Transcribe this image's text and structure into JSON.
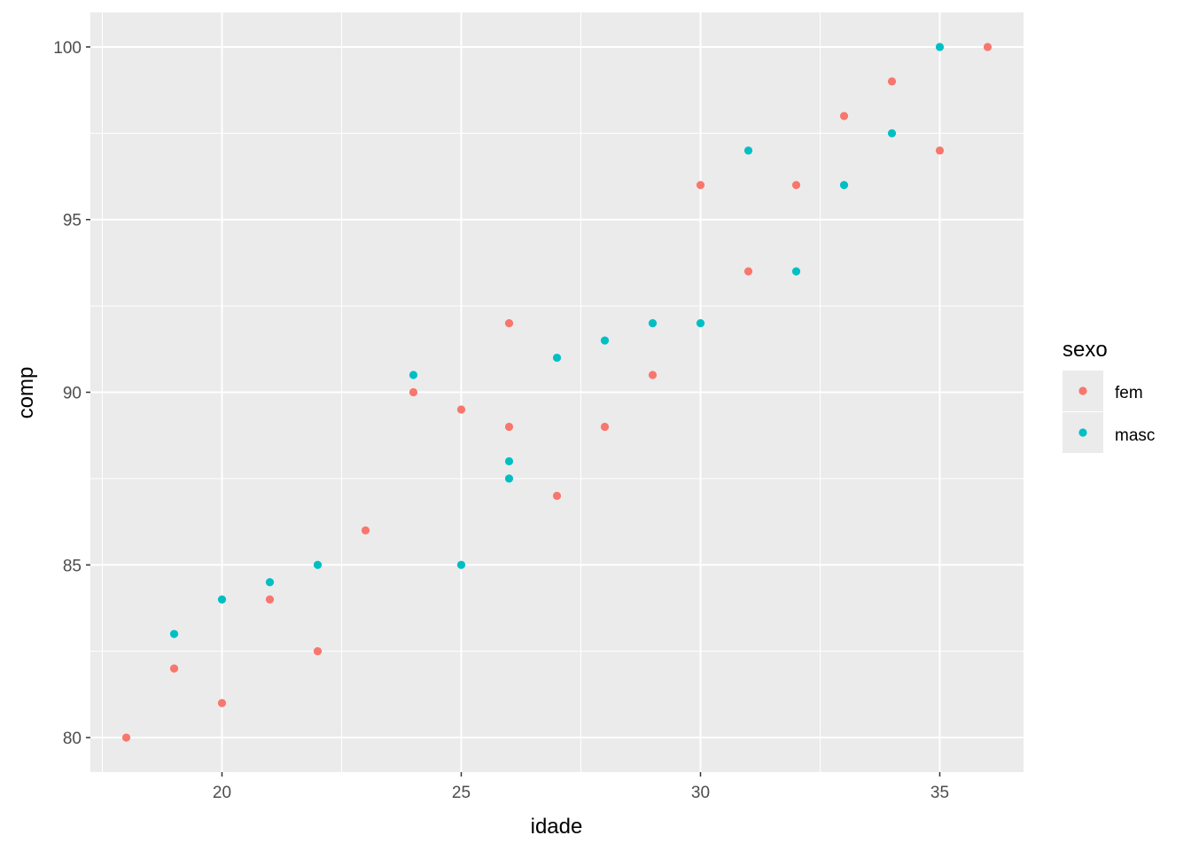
{
  "chart_data": {
    "type": "scatter",
    "xlabel": "idade",
    "ylabel": "comp",
    "xlim": [
      17.25,
      36.75
    ],
    "ylim": [
      79,
      101
    ],
    "x_ticks": [
      20,
      25,
      30,
      35
    ],
    "y_ticks": [
      80,
      85,
      90,
      95,
      100
    ],
    "x_minor": [
      17.5,
      22.5,
      27.5,
      32.5
    ],
    "y_minor": [
      82.5,
      87.5,
      92.5,
      97.5
    ],
    "grid": true,
    "legend": {
      "title": "sexo",
      "placement": "right"
    },
    "series": [
      {
        "name": "fem",
        "color": "#F8766D",
        "points": [
          [
            18,
            80
          ],
          [
            19,
            82
          ],
          [
            20,
            81
          ],
          [
            21,
            84
          ],
          [
            22,
            82.5
          ],
          [
            23,
            86
          ],
          [
            24,
            90
          ],
          [
            25,
            89.5
          ],
          [
            26,
            92
          ],
          [
            26,
            89
          ],
          [
            27,
            87
          ],
          [
            28,
            89
          ],
          [
            29,
            90.5
          ],
          [
            30,
            96
          ],
          [
            31,
            93.5
          ],
          [
            32,
            96
          ],
          [
            33,
            98
          ],
          [
            34,
            99
          ],
          [
            35,
            97
          ],
          [
            36,
            100
          ]
        ]
      },
      {
        "name": "masc",
        "color": "#00BFC4",
        "points": [
          [
            19,
            83
          ],
          [
            20,
            84
          ],
          [
            21,
            84.5
          ],
          [
            22,
            85
          ],
          [
            24,
            90.5
          ],
          [
            25,
            85
          ],
          [
            26,
            88
          ],
          [
            26,
            87.5
          ],
          [
            27,
            91
          ],
          [
            28,
            91.5
          ],
          [
            29,
            92
          ],
          [
            30,
            92
          ],
          [
            31,
            97
          ],
          [
            32,
            93.5
          ],
          [
            33,
            96
          ],
          [
            34,
            97.5
          ],
          [
            35,
            100
          ]
        ]
      }
    ]
  }
}
